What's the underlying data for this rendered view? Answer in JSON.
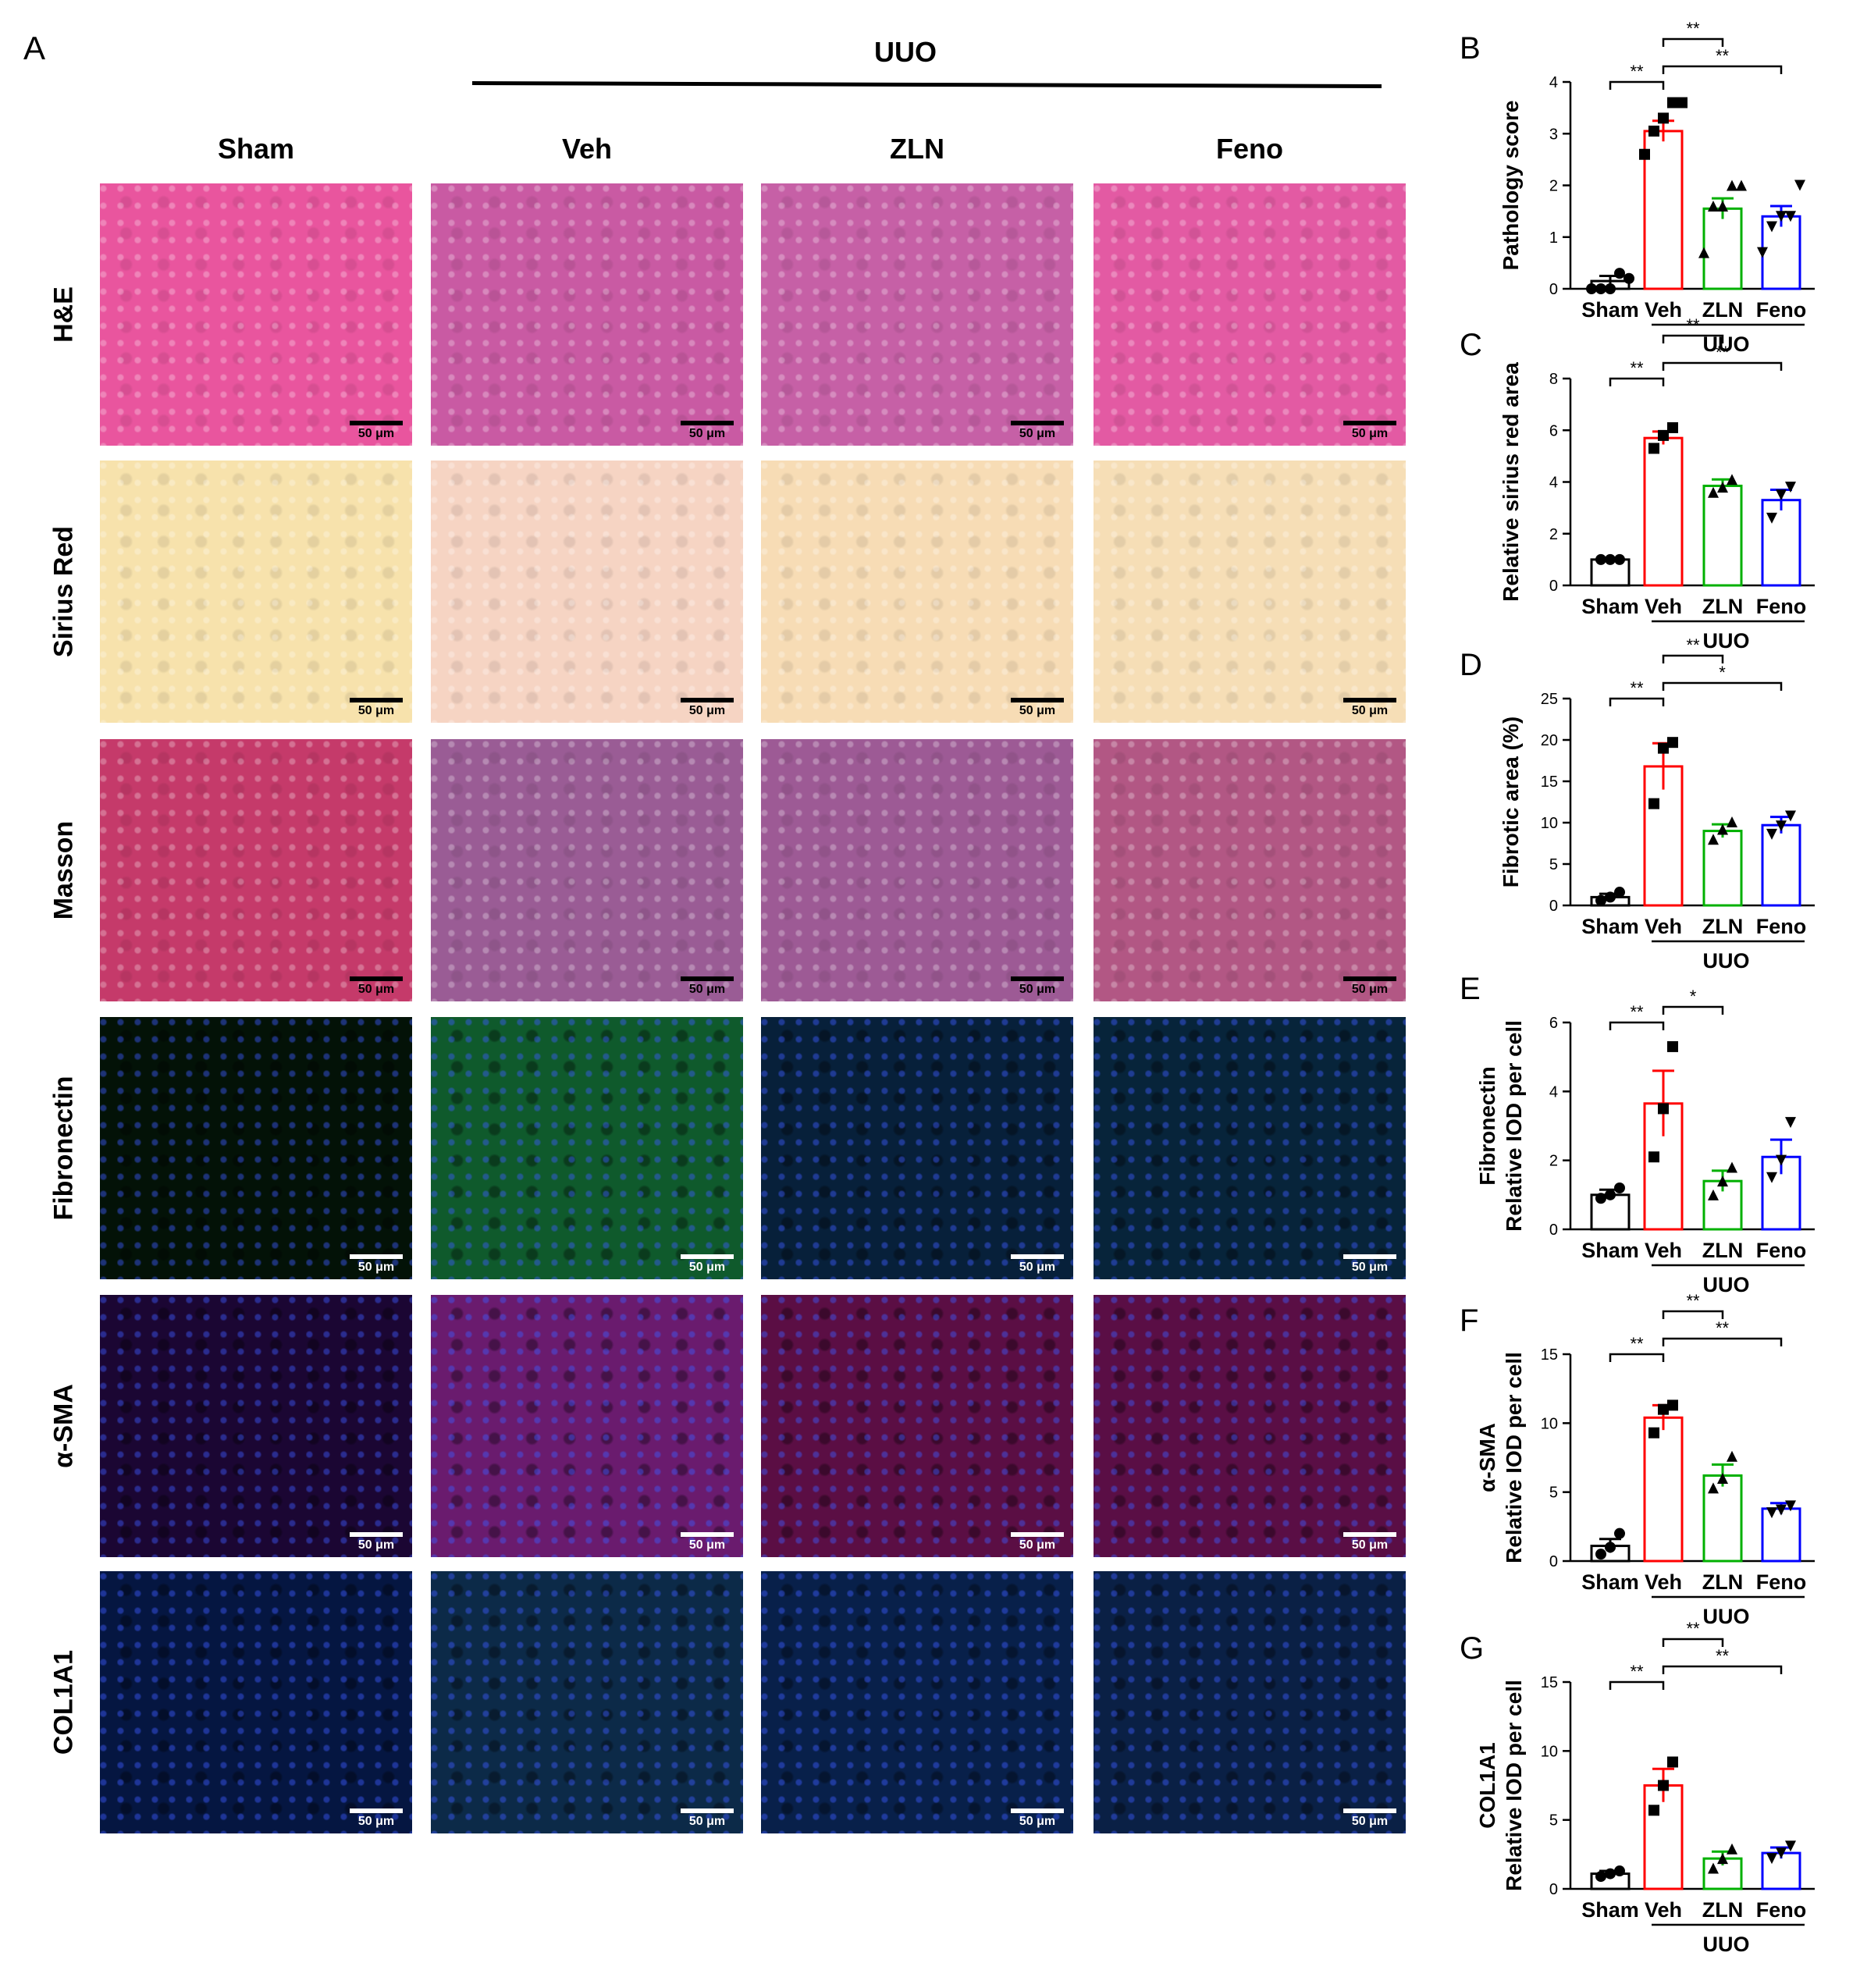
{
  "panel_a": {
    "letter": "A",
    "group_label": "UUO",
    "columns": [
      "Sham",
      "Veh",
      "ZLN",
      "Feno"
    ],
    "rows": [
      {
        "label": "H&E",
        "colors": [
          "#e9559e",
          "#c95aa3",
          "#c660a6",
          "#e35aa3"
        ]
      },
      {
        "label": "Sirius Red",
        "colors": [
          "#f7e2ac",
          "#f6d4c3",
          "#f7dcb5",
          "#f6deb6"
        ]
      },
      {
        "label": "Masson",
        "colors": [
          "#c53a6a",
          "#9a5c95",
          "#9d5a95",
          "#b25784"
        ]
      },
      {
        "label": "Fibronectin",
        "colors": [
          "#031207",
          "#0f5a2c",
          "#07203a",
          "#07243a"
        ]
      },
      {
        "label": "α-SMA",
        "colors": [
          "#1b0633",
          "#6a1b6e",
          "#5b0e44",
          "#5a0e45"
        ]
      },
      {
        "label": "COL1A1",
        "colors": [
          "#051641",
          "#0c2a48",
          "#08204a",
          "#0a2045"
        ]
      }
    ],
    "scale_label": "50 μm"
  },
  "series_colors": [
    "#000000",
    "#ff0000",
    "#00b000",
    "#0000ff"
  ],
  "chart_data": [
    {
      "letter": "B",
      "type": "bar",
      "categories": [
        "Sham",
        "Veh",
        "ZLN",
        "Feno"
      ],
      "group_label": "UUO",
      "ylabel": "Pathology score",
      "ylim": [
        0,
        4
      ],
      "yticks": [
        0,
        1,
        2,
        3,
        4
      ],
      "values": [
        0.15,
        3.05,
        1.55,
        1.4
      ],
      "errors": [
        0.1,
        0.2,
        0.2,
        0.2
      ],
      "points": [
        [
          0,
          0,
          0,
          0.3,
          0.2
        ],
        [
          2.6,
          3.05,
          3.3,
          3.6,
          3.6
        ],
        [
          0.7,
          1.6,
          1.6,
          2.0,
          2.0
        ],
        [
          0.7,
          1.2,
          1.4,
          1.4,
          2.0
        ]
      ],
      "markers": [
        "circle",
        "square",
        "triangle",
        "tri-down"
      ],
      "brackets": [
        {
          "from": 0,
          "to": 1,
          "label": "**",
          "level": 1
        },
        {
          "from": 1,
          "to": 2,
          "label": "**",
          "level": 3
        },
        {
          "from": 1,
          "to": 3,
          "label": "**",
          "level": 2
        }
      ]
    },
    {
      "letter": "C",
      "type": "bar",
      "categories": [
        "Sham",
        "Veh",
        "ZLN",
        "Feno"
      ],
      "group_label": "UUO",
      "ylabel": "Relative sirius red area",
      "ylim": [
        0,
        8
      ],
      "yticks": [
        0,
        2,
        4,
        6,
        8
      ],
      "values": [
        1.0,
        5.7,
        3.85,
        3.3
      ],
      "errors": [
        0.02,
        0.25,
        0.25,
        0.4
      ],
      "points": [
        [
          1.0,
          1.0,
          1.0
        ],
        [
          5.3,
          5.8,
          6.1
        ],
        [
          3.6,
          3.8,
          4.1
        ],
        [
          2.6,
          3.5,
          3.8
        ]
      ],
      "markers": [
        "circle",
        "square",
        "triangle",
        "tri-down"
      ],
      "brackets": [
        {
          "from": 0,
          "to": 1,
          "label": "**",
          "level": 1
        },
        {
          "from": 1,
          "to": 2,
          "label": "**",
          "level": 3
        },
        {
          "from": 1,
          "to": 3,
          "label": "**",
          "level": 2
        }
      ]
    },
    {
      "letter": "D",
      "type": "bar",
      "categories": [
        "Sham",
        "Veh",
        "ZLN",
        "Feno"
      ],
      "group_label": "UUO",
      "ylabel": "Fibrotic area (%)",
      "ylim": [
        0,
        25
      ],
      "yticks": [
        0,
        5,
        10,
        15,
        20,
        25
      ],
      "values": [
        1.0,
        16.8,
        9.0,
        9.7
      ],
      "errors": [
        0.4,
        2.8,
        0.8,
        1.0
      ],
      "points": [
        [
          0.6,
          1.0,
          1.6
        ],
        [
          12.3,
          19.0,
          19.7
        ],
        [
          8.0,
          9.2,
          10.1
        ],
        [
          8.6,
          9.6,
          10.8
        ]
      ],
      "markers": [
        "circle",
        "square",
        "triangle",
        "tri-down"
      ],
      "brackets": [
        {
          "from": 0,
          "to": 1,
          "label": "**",
          "level": 1
        },
        {
          "from": 1,
          "to": 2,
          "label": "**",
          "level": 3
        },
        {
          "from": 1,
          "to": 3,
          "label": "*",
          "level": 2
        }
      ]
    },
    {
      "letter": "E",
      "type": "bar",
      "categories": [
        "Sham",
        "Veh",
        "ZLN",
        "Feno"
      ],
      "group_label": "UUO",
      "ylabel": [
        "Fibronectin",
        "Relative IOD per cell"
      ],
      "ylim": [
        0,
        6
      ],
      "yticks": [
        0,
        2,
        4,
        6
      ],
      "values": [
        1.0,
        3.65,
        1.4,
        2.1
      ],
      "errors": [
        0.15,
        0.95,
        0.3,
        0.5
      ],
      "points": [
        [
          0.9,
          1.0,
          1.2
        ],
        [
          2.1,
          3.5,
          5.3
        ],
        [
          1.0,
          1.4,
          1.8
        ],
        [
          1.5,
          2.0,
          3.1
        ]
      ],
      "markers": [
        "circle",
        "square",
        "triangle",
        "tri-down"
      ],
      "brackets": [
        {
          "from": 0,
          "to": 1,
          "label": "**",
          "level": 1
        },
        {
          "from": 1,
          "to": 2,
          "label": "*",
          "level": 2
        }
      ]
    },
    {
      "letter": "F",
      "type": "bar",
      "categories": [
        "Sham",
        "Veh",
        "ZLN",
        "Feno"
      ],
      "group_label": "UUO",
      "ylabel": [
        "α-SMA",
        "Relative IOD per cell"
      ],
      "ylim": [
        0,
        15
      ],
      "yticks": [
        0,
        5,
        10,
        15
      ],
      "values": [
        1.1,
        10.4,
        6.2,
        3.8
      ],
      "errors": [
        0.5,
        0.9,
        0.8,
        0.4
      ],
      "points": [
        [
          0.5,
          1.0,
          2.0
        ],
        [
          9.3,
          11.0,
          11.3
        ],
        [
          5.3,
          6.0,
          7.6
        ],
        [
          3.5,
          3.7,
          4.0
        ]
      ],
      "markers": [
        "circle",
        "square",
        "triangle",
        "tri-down"
      ],
      "brackets": [
        {
          "from": 0,
          "to": 1,
          "label": "**",
          "level": 1
        },
        {
          "from": 1,
          "to": 2,
          "label": "**",
          "level": 3
        },
        {
          "from": 1,
          "to": 3,
          "label": "**",
          "level": 2
        }
      ]
    },
    {
      "letter": "G",
      "type": "bar",
      "categories": [
        "Sham",
        "Veh",
        "ZLN",
        "Feno"
      ],
      "group_label": "UUO",
      "ylabel": [
        "COL1A1",
        "Relative IOD per cell"
      ],
      "ylim": [
        0,
        15
      ],
      "yticks": [
        0,
        5,
        10,
        15
      ],
      "values": [
        1.1,
        7.5,
        2.2,
        2.6
      ],
      "errors": [
        0.2,
        1.2,
        0.5,
        0.4
      ],
      "points": [
        [
          0.9,
          1.1,
          1.3
        ],
        [
          5.7,
          7.5,
          9.2
        ],
        [
          1.5,
          2.2,
          2.9
        ],
        [
          2.2,
          2.6,
          3.1
        ]
      ],
      "markers": [
        "circle",
        "square",
        "triangle",
        "tri-down"
      ],
      "brackets": [
        {
          "from": 0,
          "to": 1,
          "label": "**",
          "level": 1
        },
        {
          "from": 1,
          "to": 2,
          "label": "**",
          "level": 3
        },
        {
          "from": 1,
          "to": 3,
          "label": "**",
          "level": 2
        }
      ]
    }
  ]
}
